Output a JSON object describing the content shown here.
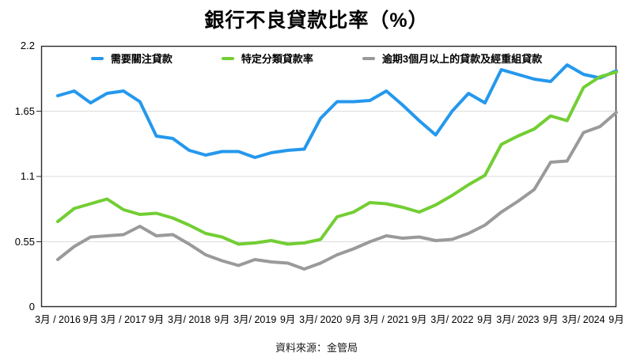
{
  "title": "銀行不良貸款比率（%）",
  "source": "資料來源：金管局",
  "legend": {
    "items": [
      {
        "label": "需要關注貸款"
      },
      {
        "label": "特定分類貸款率"
      },
      {
        "label": "逾期3個月以上的貸款及經重組貸款"
      }
    ]
  },
  "chart_data": {
    "type": "line",
    "title": "銀行不良貸款比率（%）",
    "unit": "%",
    "ylim": [
      0,
      2.2
    ],
    "yticks": [
      0,
      0.55,
      1.1,
      1.65,
      2.2
    ],
    "grid": "horizontal",
    "legend_position": "top-inside",
    "x_frequency": "quarterly",
    "x_start": "2016年3月",
    "x_end": "2024年9月",
    "points_per_tick": 2,
    "x_tick_labels": [
      "3月 / 2016",
      "9月",
      "3月 / 2017",
      "9月",
      "3月/ 2018",
      "9月",
      "3月/ 2019",
      "9月",
      "3月/ 2020",
      "9月",
      "3月 / 2021",
      "9月",
      "3月/ 2022",
      "9月",
      "3月/ 2023",
      "9月",
      "3月/ 2024",
      "9月"
    ],
    "series": [
      {
        "name": "需要關注貸款",
        "color": "#2498ED",
        "values": [
          1.78,
          1.82,
          1.72,
          1.8,
          1.82,
          1.73,
          1.44,
          1.42,
          1.32,
          1.28,
          1.31,
          1.31,
          1.26,
          1.3,
          1.32,
          1.33,
          1.59,
          1.73,
          1.73,
          1.74,
          1.82,
          1.7,
          1.57,
          1.45,
          1.65,
          1.8,
          1.72,
          2.0,
          1.96,
          1.92,
          1.9,
          2.04,
          1.96,
          1.93,
          1.99
        ]
      },
      {
        "name": "特定分類貸款率",
        "color": "#72CE33",
        "values": [
          0.72,
          0.83,
          0.87,
          0.91,
          0.82,
          0.78,
          0.79,
          0.75,
          0.69,
          0.62,
          0.59,
          0.53,
          0.54,
          0.56,
          0.53,
          0.54,
          0.57,
          0.76,
          0.8,
          0.88,
          0.87,
          0.84,
          0.8,
          0.86,
          0.94,
          1.03,
          1.11,
          1.37,
          1.44,
          1.5,
          1.61,
          1.57,
          1.85,
          1.94,
          1.98
        ]
      },
      {
        "name": "逾期3個月以上的貸款及經重組貸款",
        "color": "#9A9A9A",
        "values": [
          0.4,
          0.51,
          0.59,
          0.6,
          0.61,
          0.68,
          0.6,
          0.61,
          0.53,
          0.44,
          0.39,
          0.35,
          0.4,
          0.38,
          0.37,
          0.32,
          0.37,
          0.44,
          0.49,
          0.55,
          0.6,
          0.58,
          0.59,
          0.56,
          0.57,
          0.62,
          0.69,
          0.8,
          0.89,
          0.99,
          1.22,
          1.23,
          1.47,
          1.52,
          1.64
        ]
      }
    ],
    "axis_color": "#2b2b2b",
    "gridline_color": "#dcdcdc"
  }
}
